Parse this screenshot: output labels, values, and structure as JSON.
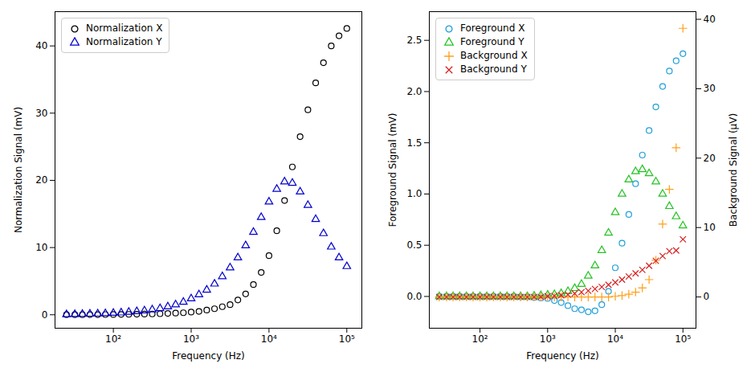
{
  "chart_data": [
    {
      "type": "scatter",
      "xlabel": "Frequency (Hz)",
      "ylabel": "Normalization Signal (mV)",
      "log": "x",
      "grid": false,
      "legend": "upper left",
      "xlim": [
        17.8,
        156000
      ],
      "ylim": [
        -2,
        45.1
      ],
      "xticks": [
        {
          "value": 100,
          "label": "10²"
        },
        {
          "value": 1000,
          "label": "10³"
        },
        {
          "value": 10000,
          "label": "10⁴"
        },
        {
          "value": 100000,
          "label": "10⁵"
        }
      ],
      "yticks": [
        0,
        10,
        20,
        30,
        40
      ],
      "x": [
        25,
        32,
        40,
        50,
        63,
        79,
        100,
        126,
        158,
        200,
        251,
        316,
        398,
        501,
        631,
        794,
        1000,
        1259,
        1585,
        1995,
        2512,
        3162,
        3981,
        5012,
        6310,
        7943,
        10000,
        12589,
        15849,
        19953,
        25119,
        31623,
        39811,
        50119,
        63096,
        79433,
        100000
      ],
      "series": [
        {
          "name": "Normalization X",
          "color": "#000000",
          "marker": "circle",
          "values": [
            0.01,
            0.01,
            0.01,
            0.02,
            0.02,
            0.03,
            0.04,
            0.05,
            0.06,
            0.08,
            0.1,
            0.12,
            0.15,
            0.2,
            0.25,
            0.3,
            0.4,
            0.5,
            0.7,
            0.9,
            1.2,
            1.5,
            2.2,
            3.1,
            4.5,
            6.3,
            8.8,
            12.5,
            17,
            22,
            26.5,
            30.5,
            34.5,
            37.5,
            40,
            41.5,
            42.6
          ]
        },
        {
          "name": "Normalization Y",
          "color": "#0000cc",
          "marker": "triangle",
          "values": [
            0.05,
            0.07,
            0.09,
            0.12,
            0.15,
            0.19,
            0.25,
            0.3,
            0.4,
            0.5,
            0.6,
            0.75,
            0.95,
            1.2,
            1.5,
            1.9,
            2.4,
            3,
            3.7,
            4.6,
            5.7,
            7,
            8.5,
            10.3,
            12.3,
            14.5,
            16.8,
            18.7,
            19.8,
            19.6,
            18.3,
            16.3,
            14.2,
            12.1,
            10.1,
            8.5,
            7.2
          ]
        }
      ]
    },
    {
      "type": "scatter",
      "xlabel": "Frequency (Hz)",
      "ylabel": "Foreground Signal (mV)",
      "y2label": "Background Signal (μV)",
      "log": "x",
      "grid": false,
      "legend": "upper left",
      "xlim": [
        17.8,
        156000
      ],
      "ylim": [
        -0.31,
        2.78
      ],
      "y2lim": [
        -4.5,
        41.1
      ],
      "xticks": [
        {
          "value": 100,
          "label": "10²"
        },
        {
          "value": 1000,
          "label": "10³"
        },
        {
          "value": 10000,
          "label": "10⁴"
        },
        {
          "value": 100000,
          "label": "10⁵"
        }
      ],
      "yticks": [
        {
          "value": 0,
          "label": "0.0"
        },
        {
          "value": 0.5,
          "label": "0.5"
        },
        {
          "value": 1,
          "label": "1.0"
        },
        {
          "value": 1.5,
          "label": "1.5"
        },
        {
          "value": 2,
          "label": "2.0"
        },
        {
          "value": 2.5,
          "label": "2.5"
        }
      ],
      "y2ticks": [
        0,
        10,
        20,
        30,
        40
      ],
      "x": [
        25,
        32,
        40,
        50,
        63,
        79,
        100,
        126,
        158,
        200,
        251,
        316,
        398,
        501,
        631,
        794,
        1000,
        1259,
        1585,
        1995,
        2512,
        3162,
        3981,
        5012,
        6310,
        7943,
        10000,
        12589,
        15849,
        19953,
        25119,
        31623,
        39811,
        50119,
        63096,
        79433,
        100000
      ],
      "series": [
        {
          "name": "Foreground X",
          "color": "#1f9fd8",
          "marker": "circle",
          "values": [
            0,
            0,
            0,
            0,
            0,
            0,
            0,
            0,
            0,
            0,
            0,
            0,
            -0.005,
            -0.005,
            -0.01,
            -0.015,
            -0.02,
            -0.04,
            -0.06,
            -0.09,
            -0.12,
            -0.13,
            -0.15,
            -0.14,
            -0.08,
            0.05,
            0.28,
            0.52,
            0.8,
            1.1,
            1.38,
            1.62,
            1.85,
            2.05,
            2.2,
            2.3,
            2.37
          ]
        },
        {
          "name": "Foreground Y",
          "color": "#22c322",
          "marker": "triangle",
          "values": [
            0,
            0,
            0,
            0,
            0,
            0,
            0,
            0,
            0,
            0,
            0,
            0,
            0,
            0,
            0.005,
            0.01,
            0.015,
            0.02,
            0.03,
            0.05,
            0.08,
            0.12,
            0.2,
            0.3,
            0.45,
            0.62,
            0.82,
            1.0,
            1.14,
            1.22,
            1.24,
            1.2,
            1.12,
            1.0,
            0.88,
            0.78,
            0.69
          ]
        },
        {
          "name": "Background X",
          "color": "#ff9f1a",
          "marker": "plus",
          "axis": "y2",
          "values": [
            0,
            0,
            0,
            0,
            0,
            0,
            0,
            0,
            0,
            0,
            0,
            0,
            0,
            0,
            0,
            0,
            0,
            0,
            0,
            0,
            0,
            0,
            0,
            0,
            0,
            0,
            0.1,
            0.2,
            0.4,
            0.7,
            1.3,
            2.5,
            5.3,
            10.5,
            15.5,
            21.5,
            38.7
          ]
        },
        {
          "name": "Background Y",
          "color": "#d62020",
          "marker": "x",
          "axis": "y2",
          "values": [
            0,
            0,
            0,
            0,
            0,
            0,
            0,
            0,
            0,
            0,
            0,
            0,
            0,
            0,
            0,
            0,
            0.1,
            0.15,
            0.25,
            0.35,
            0.5,
            0.7,
            0.9,
            1.15,
            1.45,
            1.75,
            2.1,
            2.5,
            2.95,
            3.4,
            3.9,
            4.5,
            5.2,
            5.9,
            6.6,
            6.7,
            8.3
          ]
        }
      ]
    }
  ]
}
